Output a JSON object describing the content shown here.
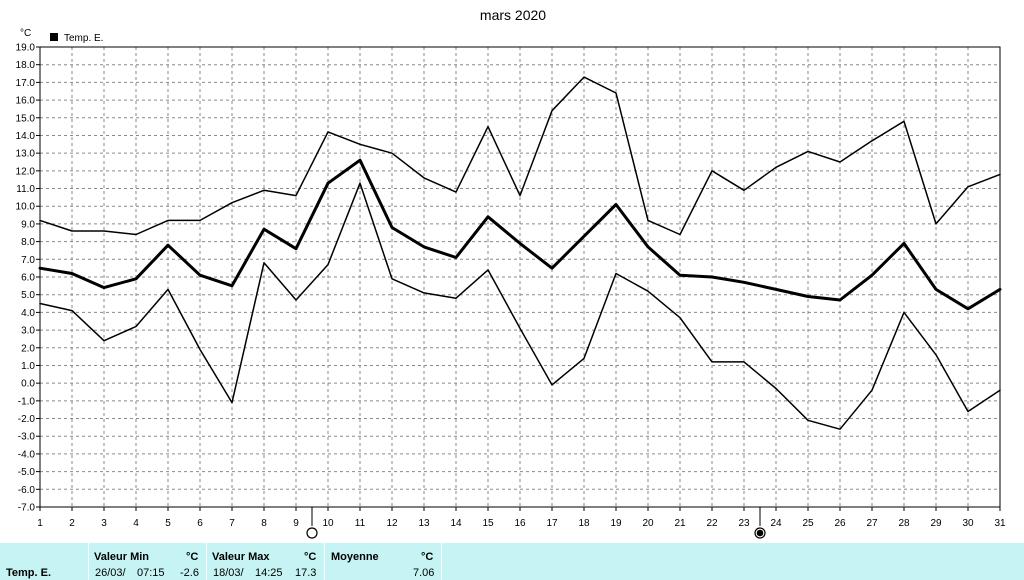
{
  "chart_data": {
    "type": "line",
    "title": "mars 2020",
    "ylabel": "°C",
    "ylim": [
      -7.0,
      19.0
    ],
    "y_tick_step": 1.0,
    "x": [
      1,
      2,
      3,
      4,
      5,
      6,
      7,
      8,
      9,
      10,
      11,
      12,
      13,
      14,
      15,
      16,
      17,
      18,
      19,
      20,
      21,
      22,
      23,
      24,
      25,
      26,
      27,
      28,
      29,
      30,
      31
    ],
    "grid": true,
    "legend": [
      {
        "label": "Temp. E.",
        "color": "#000000"
      }
    ],
    "series": [
      {
        "role": "max",
        "stroke_width": 1.5,
        "values": [
          9.2,
          8.6,
          8.6,
          8.4,
          9.2,
          9.2,
          10.2,
          10.9,
          10.6,
          14.2,
          13.5,
          13.0,
          11.6,
          10.8,
          14.5,
          10.6,
          15.4,
          17.3,
          16.4,
          9.2,
          8.4,
          12.0,
          10.9,
          12.2,
          13.1,
          12.5,
          13.7,
          14.8,
          9.0,
          11.1,
          11.8
        ]
      },
      {
        "role": "mean",
        "stroke_width": 3,
        "values": [
          6.5,
          6.2,
          5.4,
          5.9,
          7.8,
          6.1,
          5.5,
          8.7,
          7.6,
          11.3,
          12.6,
          8.8,
          7.7,
          7.1,
          9.4,
          7.9,
          6.5,
          8.3,
          10.1,
          7.7,
          6.1,
          6.0,
          5.7,
          5.3,
          4.9,
          4.7,
          6.1,
          7.9,
          5.3,
          4.2,
          5.3
        ]
      },
      {
        "role": "min",
        "stroke_width": 1.5,
        "values": [
          4.5,
          4.1,
          2.4,
          3.2,
          5.3,
          1.9,
          -1.1,
          6.8,
          4.7,
          6.7,
          11.3,
          5.9,
          5.1,
          4.8,
          6.4,
          3.1,
          -0.1,
          1.4,
          6.2,
          5.2,
          3.7,
          1.2,
          1.2,
          -0.3,
          -2.1,
          -2.6,
          -0.4,
          4.0,
          1.6,
          -1.6,
          -0.4
        ]
      }
    ],
    "markers": [
      {
        "x": 10,
        "symbol": "open-circle"
      },
      {
        "x": 24,
        "symbol": "filled-circle"
      }
    ]
  },
  "footer": {
    "row_label": "Temp. E.",
    "min": {
      "header": "Valeur Min",
      "unit": "°C",
      "date": "26/03/",
      "time": "07:15",
      "value": "-2.6"
    },
    "max": {
      "header": "Valeur Max",
      "unit": "°C",
      "date": "18/03/",
      "time": "14:25",
      "value": "17.3"
    },
    "mean": {
      "header": "Moyenne",
      "unit": "°C",
      "value": "7.06"
    }
  }
}
